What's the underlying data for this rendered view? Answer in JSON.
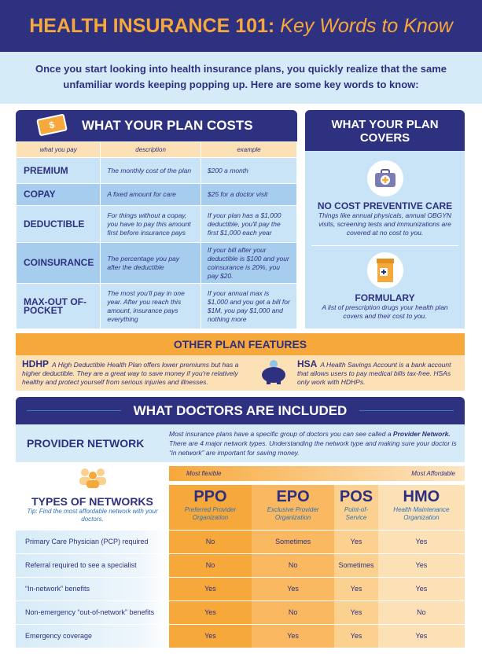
{
  "header": {
    "title_bold": "HEALTH INSURANCE 101:",
    "title_italic": "Key Words to Know"
  },
  "intro": "Once you start looking into health insurance plans, you quickly realize that the same unfamiliar words keeping popping up.  Here are some key words to know:",
  "costs": {
    "title": "WHAT YOUR PLAN COSTS",
    "icon": "money-icon",
    "columns": [
      "what you pay",
      "description",
      "example"
    ],
    "rows": [
      {
        "term": "PREMIUM",
        "description": "The monthly cost of the plan",
        "example": "$200 a month"
      },
      {
        "term": "COPAY",
        "description": "A fixed amount for care",
        "example": "$25 for a doctor visit"
      },
      {
        "term": "DEDUCTIBLE",
        "description": "For things without a copay, you have to pay this amount first before insurance pays",
        "example": "If your plan has a $1,000 deductible, you'll pay the first $1,000 each year"
      },
      {
        "term": "COINSURANCE",
        "description": "The percentage you pay after the deductible",
        "example": "If your bill after your deductible is $100 and your coinsurance is 20%, you pay $20."
      },
      {
        "term": "MAX-OUT OF-POCKET",
        "description": "The most you'll pay in one year. After you reach this amount, insurance pays everything",
        "example": "If your annual max is $1,000 and you get a bill for $1M, you pay $1,000 and nothing more"
      }
    ]
  },
  "covers": {
    "title": "WHAT YOUR PLAN COVERS",
    "items": [
      {
        "icon": "medical-kit-icon",
        "title": "NO COST PREVENTIVE CARE",
        "description": "Things like annual physicals, annual OBGYN visits, screening tests and immunizations are covered at no cost to you."
      },
      {
        "icon": "pill-bottle-icon",
        "title": "FORMULARY",
        "description": "A list of prescription drugs your health plan covers and their cost to you."
      }
    ]
  },
  "features": {
    "title": "OTHER PLAN FEATURES",
    "icon": "piggy-bank-icon",
    "hdhp": {
      "term": "HDHP",
      "text": "A High Deductible Health Plan offers lower premiums but has a higher deductible. They are a great way to save money if you're relatively healthy and protect yourself from serious injuries and illnesses."
    },
    "hsa": {
      "term": "HSA",
      "text": "A Health Savings Account is a bank account that allows users to pay medical bills tax-free. HSAs only work with HDHPs."
    }
  },
  "doctors": {
    "title": "WHAT DOCTORS ARE INCLUDED",
    "provider_network": {
      "title": "PROVIDER NETWORK",
      "text_1": "Most insurance plans have a specific group of doctors you can see called a ",
      "text_bold": "Provider Network.",
      "text_2": "  There are 4 major network types. Understanding the network type and making sure your doctor is “in network” are important for saving money."
    }
  },
  "networks": {
    "title": "TYPES OF NETWORKS",
    "tip": "Tip: Find the most affordable network with your doctors.",
    "icon": "people-icon",
    "scale_left": "Most flexible",
    "scale_right": "Most Affordable",
    "types": [
      {
        "abbr": "PPO",
        "name": "Preferred Provider Organization"
      },
      {
        "abbr": "EPO",
        "name": "Exclusive Provider Organization"
      },
      {
        "abbr": "POS",
        "name": "Point-of-Service"
      },
      {
        "abbr": "HMO",
        "name": "Health Maintenance Organization"
      }
    ],
    "rows": [
      {
        "label": "Primary Care Physician (PCP) required",
        "values": [
          "No",
          "Sometimes",
          "Yes",
          "Yes"
        ]
      },
      {
        "label": "Referral required to see a specialist",
        "values": [
          "No",
          "No",
          "Sometimes",
          "Yes"
        ]
      },
      {
        "label": "“In-network” benefits",
        "values": [
          "Yes",
          "Yes",
          "Yes",
          "Yes"
        ]
      },
      {
        "label": "Non-emergency “out-of-network” benefits",
        "values": [
          "Yes",
          "No",
          "Yes",
          "No"
        ]
      },
      {
        "label": "Emergency coverage",
        "values": [
          "Yes",
          "Yes",
          "Yes",
          "Yes"
        ]
      }
    ]
  },
  "colors": {
    "navy": "#2e3080",
    "orange": "#f7a83b",
    "peach": "#fde1b6",
    "light_blue": "#c9e4f7"
  }
}
